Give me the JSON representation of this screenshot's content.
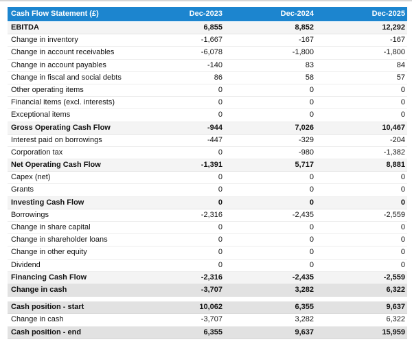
{
  "table": {
    "title": "Cash Flow Statement (£)",
    "columns": [
      "Dec-2023",
      "Dec-2024",
      "Dec-2025"
    ]
  },
  "colors": {
    "header_bg": "#1c85cf",
    "header_text": "#ffffff",
    "section_row_bg": "#f4f4f4",
    "total_row_bg": "#e2e2e2",
    "text": "#111111"
  },
  "rows": [
    {
      "label": "EBITDA",
      "values": [
        "6,855",
        "8,852",
        "12,292"
      ],
      "style": "section"
    },
    {
      "label": "Change in inventory",
      "values": [
        "-1,667",
        "-167",
        "-167"
      ],
      "style": "normal"
    },
    {
      "label": "Change in account receivables",
      "values": [
        "-6,078",
        "-1,800",
        "-1,800"
      ],
      "style": "normal"
    },
    {
      "label": "Change in account payables",
      "values": [
        "-140",
        "83",
        "84"
      ],
      "style": "normal"
    },
    {
      "label": "Change in fiscal and social debts",
      "values": [
        "86",
        "58",
        "57"
      ],
      "style": "normal"
    },
    {
      "label": "Other operating items",
      "values": [
        "0",
        "0",
        "0"
      ],
      "style": "normal"
    },
    {
      "label": "Financial items (excl. interests)",
      "values": [
        "0",
        "0",
        "0"
      ],
      "style": "normal"
    },
    {
      "label": "Exceptional items",
      "values": [
        "0",
        "0",
        "0"
      ],
      "style": "normal"
    },
    {
      "label": "Gross Operating Cash Flow",
      "values": [
        "-944",
        "7,026",
        "10,467"
      ],
      "style": "section"
    },
    {
      "label": "Interest paid on borrowings",
      "values": [
        "-447",
        "-329",
        "-204"
      ],
      "style": "normal"
    },
    {
      "label": "Corporation tax",
      "values": [
        "0",
        "-980",
        "-1,382"
      ],
      "style": "normal"
    },
    {
      "label": "Net Operating Cash Flow",
      "values": [
        "-1,391",
        "5,717",
        "8,881"
      ],
      "style": "section"
    },
    {
      "label": "Capex (net)",
      "values": [
        "0",
        "0",
        "0"
      ],
      "style": "normal"
    },
    {
      "label": "Grants",
      "values": [
        "0",
        "0",
        "0"
      ],
      "style": "normal"
    },
    {
      "label": "Investing Cash Flow",
      "values": [
        "0",
        "0",
        "0"
      ],
      "style": "section"
    },
    {
      "label": "Borrowings",
      "values": [
        "-2,316",
        "-2,435",
        "-2,559"
      ],
      "style": "normal"
    },
    {
      "label": "Change in share capital",
      "values": [
        "0",
        "0",
        "0"
      ],
      "style": "normal"
    },
    {
      "label": "Change in shareholder loans",
      "values": [
        "0",
        "0",
        "0"
      ],
      "style": "normal"
    },
    {
      "label": "Change in other equity",
      "values": [
        "0",
        "0",
        "0"
      ],
      "style": "normal"
    },
    {
      "label": "Dividend",
      "values": [
        "0",
        "0",
        "0"
      ],
      "style": "normal"
    },
    {
      "label": "Financing Cash Flow",
      "values": [
        "-2,316",
        "-2,435",
        "-2,559"
      ],
      "style": "section"
    },
    {
      "label": "Change in cash",
      "values": [
        "-3,707",
        "3,282",
        "6,322"
      ],
      "style": "total"
    },
    {
      "label": "",
      "values": [
        "",
        "",
        ""
      ],
      "style": "spacer"
    },
    {
      "label": "Cash position - start",
      "values": [
        "10,062",
        "6,355",
        "9,637"
      ],
      "style": "total"
    },
    {
      "label": "Change in cash",
      "values": [
        "-3,707",
        "3,282",
        "6,322"
      ],
      "style": "normal"
    },
    {
      "label": "Cash position - end",
      "values": [
        "6,355",
        "9,637",
        "15,959"
      ],
      "style": "total"
    }
  ]
}
